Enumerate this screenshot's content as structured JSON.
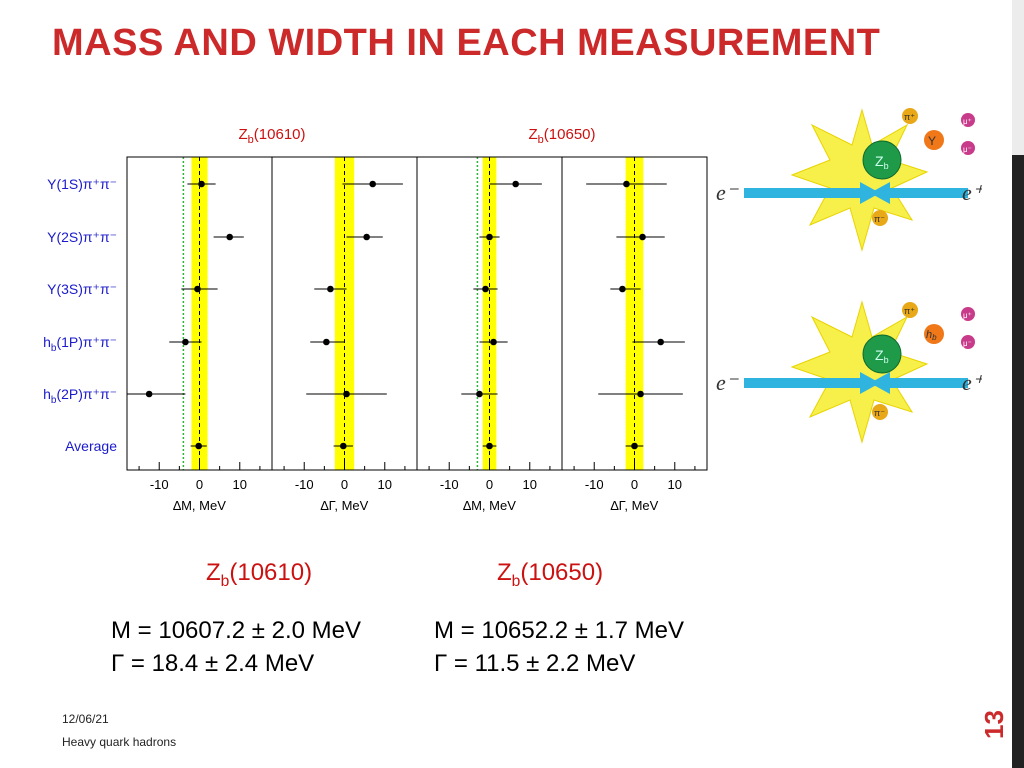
{
  "slide": {
    "title": "MASS AND WIDTH IN EACH MEASUREMENT",
    "date": "12/06/21",
    "footer": "Heavy quark hadrons",
    "page_number": "13"
  },
  "chart_data": {
    "type": "scatter",
    "rows": [
      "Υ(1S)π⁺π⁻",
      "Υ(2S)π⁺π⁻",
      "Υ(3S)π⁺π⁻",
      "h_b(1P)π⁺π⁻",
      "h_b(2P)π⁺π⁻",
      "Average"
    ],
    "panels": [
      {
        "group": "Zb(10610)",
        "xlabel": "∆M, MeV",
        "xlim": [
          -18,
          18
        ],
        "ticks": [
          -10,
          0,
          10
        ],
        "band": [
          -2,
          2
        ],
        "green_line": -4,
        "values": [
          0.5,
          7.5,
          -0.5,
          -3.5,
          -12.5,
          -0.2
        ],
        "err_lo": [
          3.5,
          4.0,
          4.0,
          4.0,
          9.0,
          2.0
        ],
        "err_hi": [
          3.5,
          3.5,
          5.0,
          4.0,
          9.0,
          2.0
        ]
      },
      {
        "group": "Zb(10610)",
        "xlabel": "∆Γ, MeV",
        "xlim": [
          -18,
          18
        ],
        "ticks": [
          -10,
          0,
          10
        ],
        "band": [
          -2.4,
          2.4
        ],
        "green_line": null,
        "values": [
          7.0,
          5.5,
          -3.5,
          -4.5,
          0.5,
          -0.3
        ],
        "err_lo": [
          7.5,
          5.0,
          4.0,
          4.0,
          10.0,
          2.4
        ],
        "err_hi": [
          7.5,
          4.0,
          4.0,
          4.5,
          10.0,
          2.4
        ]
      },
      {
        "group": "Zb(10650)",
        "xlabel": "∆M, MeV",
        "xlim": [
          -18,
          18
        ],
        "ticks": [
          -10,
          0,
          10
        ],
        "band": [
          -1.7,
          1.7
        ],
        "green_line": -3,
        "values": [
          6.5,
          0.0,
          -1.0,
          1.0,
          -2.5,
          0.0
        ],
        "err_lo": [
          6.5,
          2.5,
          3.0,
          3.5,
          4.5,
          1.7
        ],
        "err_hi": [
          6.5,
          2.5,
          3.0,
          3.5,
          4.5,
          1.7
        ]
      },
      {
        "group": "Zb(10650)",
        "xlabel": "∆Γ, MeV",
        "xlim": [
          -18,
          18
        ],
        "ticks": [
          -10,
          0,
          10
        ],
        "band": [
          -2.2,
          2.2
        ],
        "green_line": null,
        "values": [
          -2.0,
          2.0,
          -3.0,
          6.5,
          1.5,
          0.0
        ],
        "err_lo": [
          10.0,
          6.5,
          3.0,
          7.0,
          10.5,
          2.2
        ],
        "err_hi": [
          10.0,
          5.5,
          4.5,
          6.0,
          10.5,
          2.2
        ]
      }
    ]
  },
  "results": {
    "zb10610": {
      "name": "Z",
      "sub": "b",
      "mass": "(10610)",
      "M": "M = 10607.2 ± 2.0 MeV",
      "G": "Γ  =  18.4 ± 2.4 MeV"
    },
    "zb10650": {
      "name": "Z",
      "sub": "b",
      "mass": "(10650)",
      "M": "M = 10652.2  ± 1.7 MeV",
      "G": "Γ  =  11.5 ± 2.2 MeV"
    }
  },
  "diagram": {
    "top": {
      "electron": "e⁻",
      "positron": "e⁺",
      "center": "Z",
      "center_sub": "b",
      "products": [
        "π⁺",
        "π⁻",
        "Υ",
        "μ⁺",
        "μ⁻"
      ]
    },
    "bottom": {
      "electron": "e⁻",
      "positron": "e⁺",
      "center": "Z",
      "center_sub": "b",
      "products": [
        "π⁺",
        "π⁻",
        "h",
        "μ⁺",
        "μ⁻"
      ],
      "hb_sub": "b"
    }
  },
  "colors": {
    "title": "#cc2a2a",
    "band": "#ffff00",
    "green": "#2db52d",
    "label": "#1a1acc",
    "group_label": "#cc1111"
  }
}
